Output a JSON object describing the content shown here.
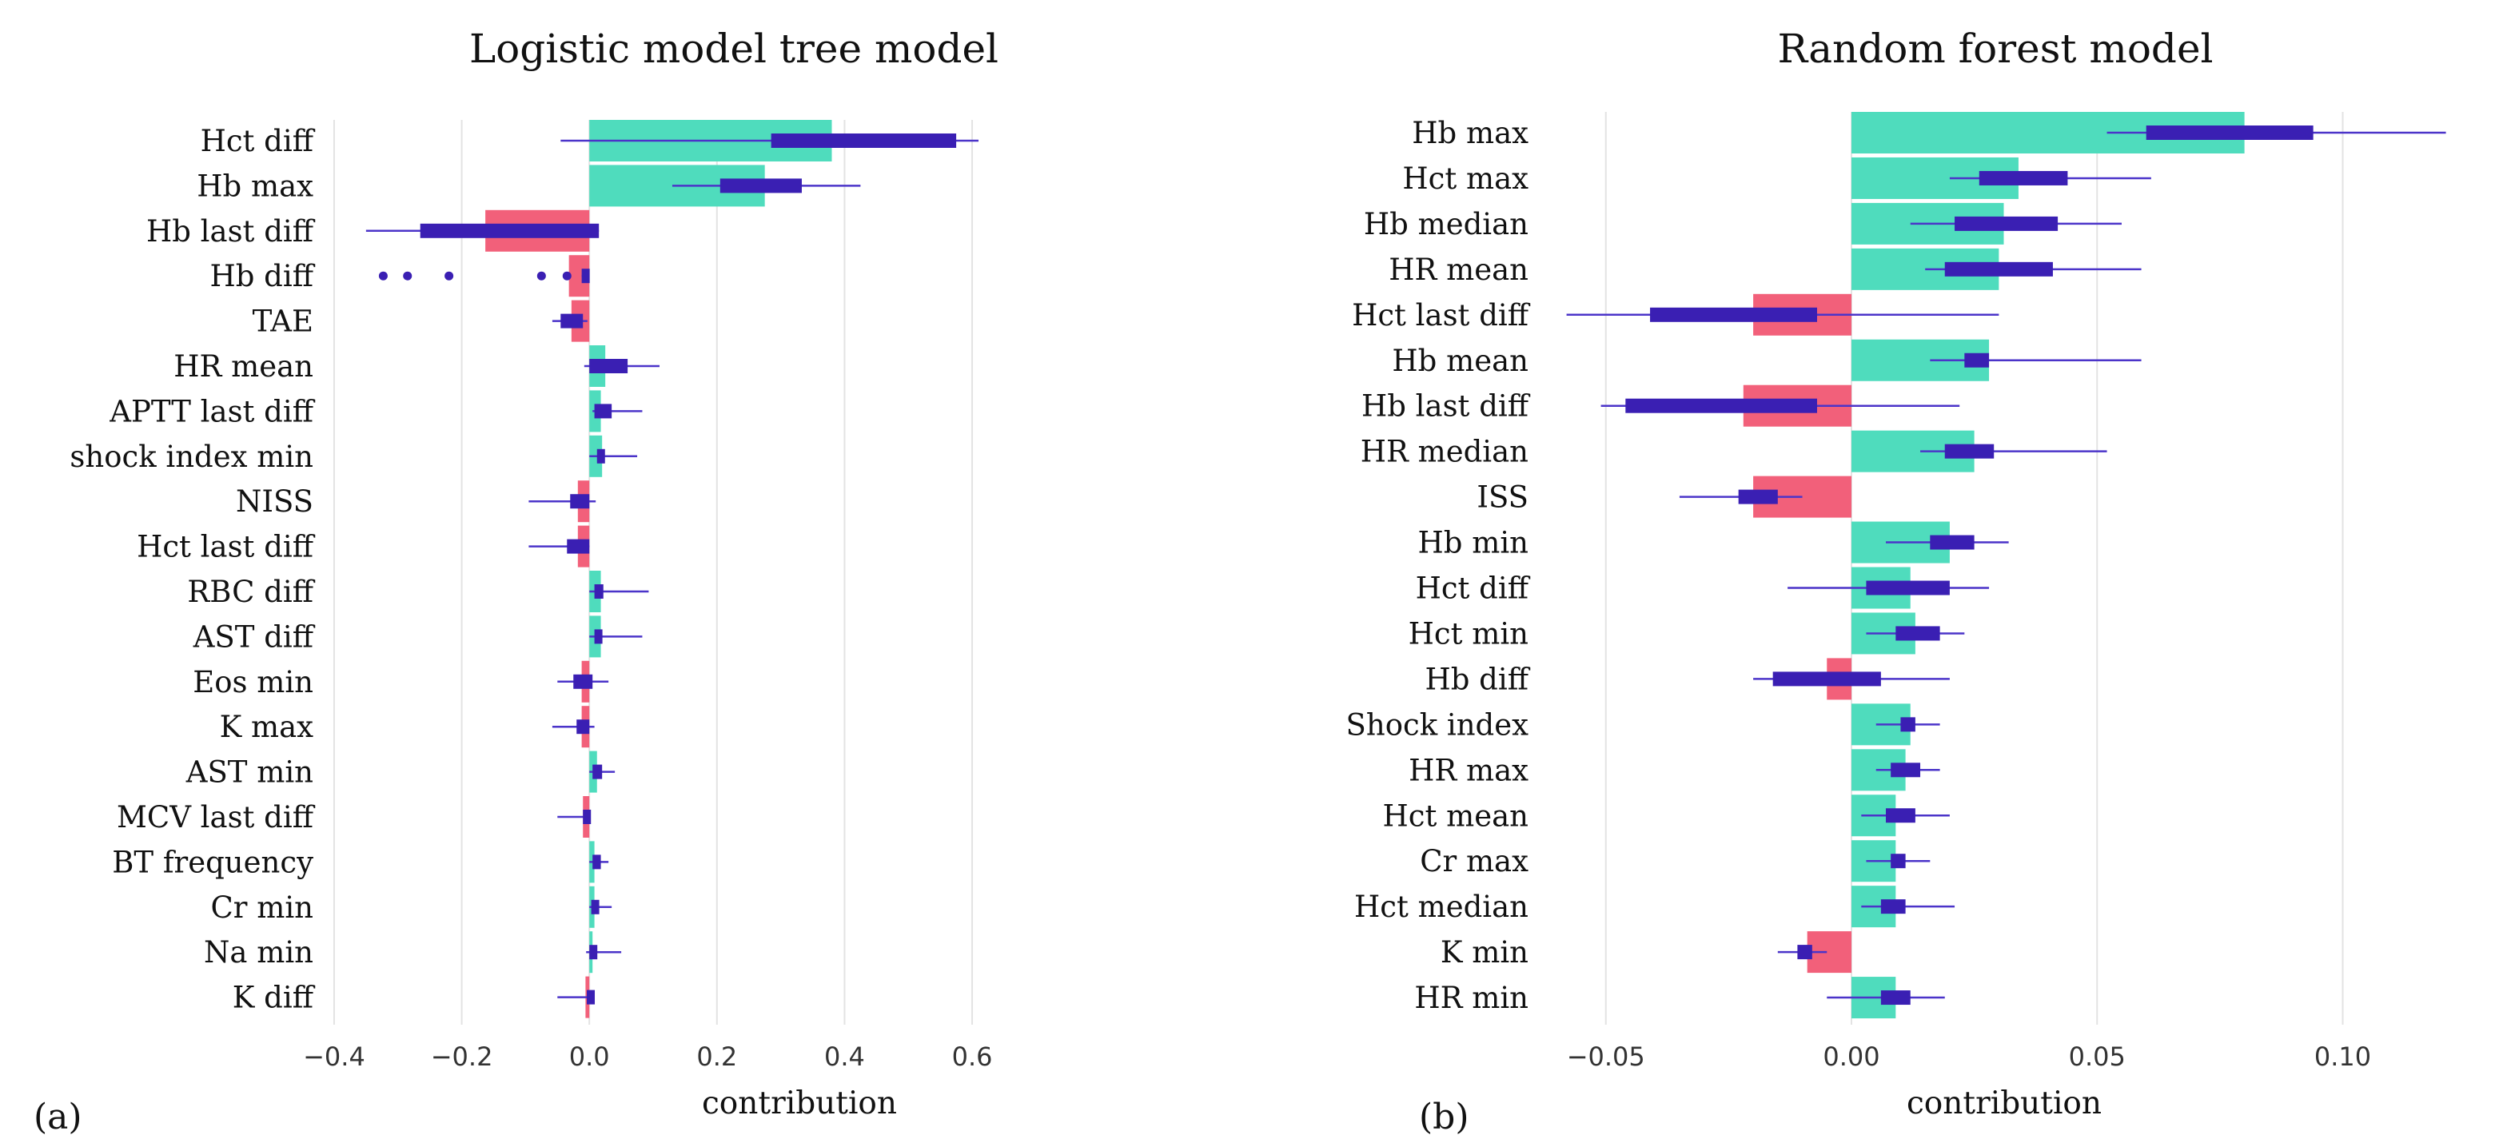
{
  "chart_data": [
    {
      "type": "bar",
      "panel": "(a)",
      "title": "Logistic model tree model",
      "xlabel": "contribution",
      "ylabel": "",
      "xlim": [
        -0.42,
        0.63
      ],
      "xticks": [
        -0.4,
        -0.2,
        0.0,
        0.2,
        0.4,
        0.6
      ],
      "xtick_labels": [
        "−0.4",
        "−0.2",
        "0.0",
        "0.2",
        "0.4",
        "0.6"
      ],
      "grid": true,
      "colors": {
        "positive": "#4fdcbd",
        "negative": "#f2607a",
        "box": "#3a1fb3",
        "whisker": "#4b34c9"
      },
      "features": [
        {
          "label": "Hct diff",
          "value": 0.38,
          "q1": 0.285,
          "q3": 0.575,
          "min": -0.045,
          "max": 0.61
        },
        {
          "label": "Hb max",
          "value": 0.275,
          "q1": 0.205,
          "q3": 0.333,
          "min": 0.13,
          "max": 0.425
        },
        {
          "label": "Hb last diff",
          "value": -0.163,
          "q1": -0.265,
          "q3": 0.015,
          "min": -0.35,
          "max": 0.015
        },
        {
          "label": "Hb diff",
          "value": -0.032,
          "q1": -0.012,
          "q3": -0.002,
          "min": -0.012,
          "max": -0.002,
          "outliers": [
            -0.323,
            -0.285,
            -0.22,
            -0.075,
            -0.035
          ]
        },
        {
          "label": "TAE",
          "value": -0.028,
          "q1": -0.045,
          "q3": -0.01,
          "min": -0.058,
          "max": -0.003
        },
        {
          "label": "HR mean",
          "value": 0.025,
          "q1": 0.0,
          "q3": 0.06,
          "min": -0.008,
          "max": 0.11
        },
        {
          "label": "APTT last diff",
          "value": 0.018,
          "q1": 0.008,
          "q3": 0.035,
          "min": 0.005,
          "max": 0.083
        },
        {
          "label": "shock index min",
          "value": 0.02,
          "q1": 0.012,
          "q3": 0.022,
          "min": 0.0,
          "max": 0.075
        },
        {
          "label": "NISS",
          "value": -0.018,
          "q1": -0.03,
          "q3": 0.0,
          "min": -0.095,
          "max": 0.01
        },
        {
          "label": "Hct last diff",
          "value": -0.018,
          "q1": -0.035,
          "q3": 0.0,
          "min": -0.095,
          "max": 0.0
        },
        {
          "label": "RBC diff",
          "value": 0.018,
          "q1": 0.008,
          "q3": 0.022,
          "min": 0.0,
          "max": 0.093
        },
        {
          "label": "AST diff",
          "value": 0.018,
          "q1": 0.008,
          "q3": 0.018,
          "min": 0.0,
          "max": 0.083
        },
        {
          "label": "Eos min",
          "value": -0.012,
          "q1": -0.025,
          "q3": 0.005,
          "min": -0.05,
          "max": 0.03
        },
        {
          "label": "K max",
          "value": -0.012,
          "q1": -0.02,
          "q3": 0.0,
          "min": -0.058,
          "max": 0.008
        },
        {
          "label": "AST min",
          "value": 0.012,
          "q1": 0.005,
          "q3": 0.02,
          "min": 0.0,
          "max": 0.04
        },
        {
          "label": "MCV last diff",
          "value": -0.01,
          "q1": -0.01,
          "q3": -0.002,
          "min": -0.05,
          "max": 0.0
        },
        {
          "label": "BT frequency",
          "value": 0.008,
          "q1": 0.005,
          "q3": 0.018,
          "min": 0.0,
          "max": 0.03
        },
        {
          "label": "Cr min",
          "value": 0.008,
          "q1": 0.003,
          "q3": 0.012,
          "min": 0.0,
          "max": 0.035
        },
        {
          "label": "Na min",
          "value": 0.005,
          "q1": 0.0,
          "q3": 0.008,
          "min": -0.005,
          "max": 0.05
        },
        {
          "label": "K diff",
          "value": -0.006,
          "q1": -0.004,
          "q3": 0.0,
          "min": -0.05,
          "max": 0.0
        }
      ]
    },
    {
      "type": "bar",
      "panel": "(b)",
      "title": "Random forest model",
      "xlabel": "contribution",
      "ylabel": "",
      "xlim": [
        -0.062,
        0.124
      ],
      "xticks": [
        -0.05,
        0.0,
        0.05,
        0.1
      ],
      "xtick_labels": [
        "−0.05",
        "0.00",
        "0.05",
        "0.10"
      ],
      "grid": true,
      "colors": {
        "positive": "#4fdcbd",
        "negative": "#f2607a",
        "box": "#3a1fb3",
        "whisker": "#4b34c9"
      },
      "features": [
        {
          "label": "Hb max",
          "value": 0.08,
          "q1": 0.06,
          "q3": 0.094,
          "min": 0.052,
          "max": 0.121
        },
        {
          "label": "Hct max",
          "value": 0.034,
          "q1": 0.026,
          "q3": 0.044,
          "min": 0.02,
          "max": 0.061
        },
        {
          "label": "Hb median",
          "value": 0.031,
          "q1": 0.021,
          "q3": 0.042,
          "min": 0.012,
          "max": 0.055
        },
        {
          "label": "HR mean",
          "value": 0.03,
          "q1": 0.019,
          "q3": 0.041,
          "min": 0.015,
          "max": 0.059
        },
        {
          "label": "Hct last diff",
          "value": -0.02,
          "q1": -0.041,
          "q3": -0.007,
          "min": -0.058,
          "max": 0.03
        },
        {
          "label": "Hb mean",
          "value": 0.028,
          "q1": 0.023,
          "q3": 0.028,
          "min": 0.016,
          "max": 0.059
        },
        {
          "label": "Hb last diff",
          "value": -0.022,
          "q1": -0.046,
          "q3": -0.007,
          "min": -0.051,
          "max": 0.022
        },
        {
          "label": "HR median",
          "value": 0.025,
          "q1": 0.019,
          "q3": 0.029,
          "min": 0.014,
          "max": 0.052
        },
        {
          "label": "ISS",
          "value": -0.02,
          "q1": -0.023,
          "q3": -0.015,
          "min": -0.035,
          "max": -0.01
        },
        {
          "label": "Hb min",
          "value": 0.02,
          "q1": 0.016,
          "q3": 0.025,
          "min": 0.007,
          "max": 0.032
        },
        {
          "label": "Hct diff",
          "value": 0.012,
          "q1": 0.003,
          "q3": 0.02,
          "min": -0.013,
          "max": 0.028
        },
        {
          "label": "Hct min",
          "value": 0.013,
          "q1": 0.009,
          "q3": 0.018,
          "min": 0.003,
          "max": 0.023
        },
        {
          "label": "Hb diff",
          "value": -0.005,
          "q1": -0.016,
          "q3": 0.006,
          "min": -0.02,
          "max": 0.02
        },
        {
          "label": "Shock index",
          "value": 0.012,
          "q1": 0.01,
          "q3": 0.013,
          "min": 0.005,
          "max": 0.018
        },
        {
          "label": "HR max",
          "value": 0.011,
          "q1": 0.008,
          "q3": 0.014,
          "min": 0.005,
          "max": 0.018
        },
        {
          "label": "Hct mean",
          "value": 0.009,
          "q1": 0.007,
          "q3": 0.013,
          "min": 0.002,
          "max": 0.02
        },
        {
          "label": "Cr max",
          "value": 0.009,
          "q1": 0.008,
          "q3": 0.011,
          "min": 0.003,
          "max": 0.016
        },
        {
          "label": "Hct median",
          "value": 0.009,
          "q1": 0.006,
          "q3": 0.011,
          "min": 0.002,
          "max": 0.021
        },
        {
          "label": "K min",
          "value": -0.009,
          "q1": -0.011,
          "q3": -0.008,
          "min": -0.015,
          "max": -0.005
        },
        {
          "label": "HR min",
          "value": 0.009,
          "q1": 0.006,
          "q3": 0.012,
          "min": -0.005,
          "max": 0.019
        }
      ]
    }
  ]
}
